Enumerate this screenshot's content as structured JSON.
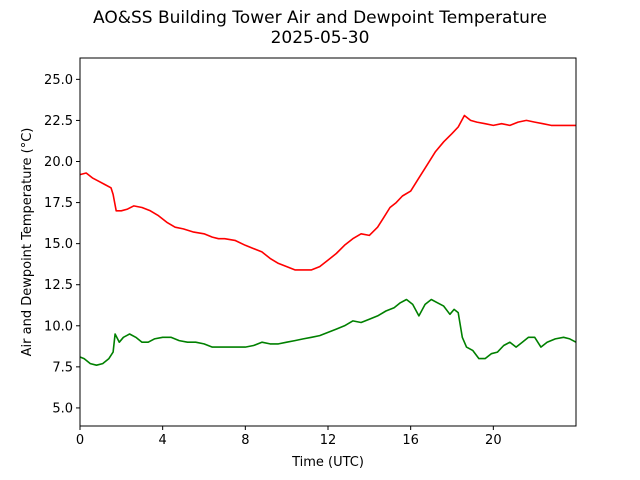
{
  "chart_data": {
    "type": "line",
    "title": "AO&SS Building Tower Air and Dewpoint Temperature",
    "subtitle": "2025-05-30",
    "xlabel": "Time (UTC)",
    "ylabel": "Air and Dewpoint Temperature (°C)",
    "xlim": [
      0,
      24
    ],
    "ylim": [
      3.9,
      26.3
    ],
    "xticks": [
      0,
      4,
      8,
      12,
      16,
      20
    ],
    "xtick_labels": [
      "0",
      "4",
      "8",
      "12",
      "16",
      "20"
    ],
    "yticks": [
      5.0,
      7.5,
      10.0,
      12.5,
      15.0,
      17.5,
      20.0,
      22.5,
      25.0
    ],
    "ytick_labels": [
      "5.0",
      "7.5",
      "10.0",
      "12.5",
      "15.0",
      "17.5",
      "20.0",
      "22.5",
      "25.0"
    ],
    "grid": false,
    "legend": "none",
    "series": [
      {
        "color": "#ff0000",
        "points": [
          [
            0.0,
            19.2
          ],
          [
            0.3,
            19.3
          ],
          [
            0.6,
            19.0
          ],
          [
            0.9,
            18.8
          ],
          [
            1.2,
            18.6
          ],
          [
            1.5,
            18.4
          ],
          [
            1.6,
            18.0
          ],
          [
            1.75,
            17.0
          ],
          [
            2.0,
            17.0
          ],
          [
            2.3,
            17.1
          ],
          [
            2.6,
            17.3
          ],
          [
            3.0,
            17.2
          ],
          [
            3.4,
            17.0
          ],
          [
            3.8,
            16.7
          ],
          [
            4.2,
            16.3
          ],
          [
            4.6,
            16.0
          ],
          [
            5.0,
            15.9
          ],
          [
            5.5,
            15.7
          ],
          [
            6.0,
            15.6
          ],
          [
            6.4,
            15.4
          ],
          [
            6.7,
            15.3
          ],
          [
            7.0,
            15.3
          ],
          [
            7.5,
            15.2
          ],
          [
            8.0,
            14.9
          ],
          [
            8.4,
            14.7
          ],
          [
            8.8,
            14.5
          ],
          [
            9.2,
            14.1
          ],
          [
            9.6,
            13.8
          ],
          [
            10.0,
            13.6
          ],
          [
            10.4,
            13.4
          ],
          [
            10.8,
            13.4
          ],
          [
            11.2,
            13.4
          ],
          [
            11.6,
            13.6
          ],
          [
            12.0,
            14.0
          ],
          [
            12.4,
            14.4
          ],
          [
            12.8,
            14.9
          ],
          [
            13.2,
            15.3
          ],
          [
            13.6,
            15.6
          ],
          [
            14.0,
            15.5
          ],
          [
            14.4,
            16.0
          ],
          [
            14.7,
            16.6
          ],
          [
            15.0,
            17.2
          ],
          [
            15.3,
            17.5
          ],
          [
            15.6,
            17.9
          ],
          [
            16.0,
            18.2
          ],
          [
            16.4,
            19.0
          ],
          [
            16.8,
            19.8
          ],
          [
            17.2,
            20.6
          ],
          [
            17.6,
            21.2
          ],
          [
            18.0,
            21.7
          ],
          [
            18.3,
            22.1
          ],
          [
            18.6,
            22.8
          ],
          [
            18.9,
            22.5
          ],
          [
            19.2,
            22.4
          ],
          [
            19.6,
            22.3
          ],
          [
            20.0,
            22.2
          ],
          [
            20.4,
            22.3
          ],
          [
            20.8,
            22.2
          ],
          [
            21.2,
            22.4
          ],
          [
            21.6,
            22.5
          ],
          [
            22.0,
            22.4
          ],
          [
            22.4,
            22.3
          ],
          [
            22.8,
            22.2
          ],
          [
            23.2,
            22.2
          ],
          [
            24.0,
            22.2
          ]
        ]
      },
      {
        "color": "#008000",
        "points": [
          [
            0.0,
            8.1
          ],
          [
            0.2,
            8.0
          ],
          [
            0.5,
            7.7
          ],
          [
            0.8,
            7.6
          ],
          [
            1.1,
            7.7
          ],
          [
            1.4,
            8.0
          ],
          [
            1.6,
            8.4
          ],
          [
            1.7,
            9.5
          ],
          [
            1.9,
            9.0
          ],
          [
            2.1,
            9.3
          ],
          [
            2.4,
            9.5
          ],
          [
            2.7,
            9.3
          ],
          [
            3.0,
            9.0
          ],
          [
            3.3,
            9.0
          ],
          [
            3.6,
            9.2
          ],
          [
            4.0,
            9.3
          ],
          [
            4.4,
            9.3
          ],
          [
            4.8,
            9.1
          ],
          [
            5.2,
            9.0
          ],
          [
            5.6,
            9.0
          ],
          [
            6.0,
            8.9
          ],
          [
            6.4,
            8.7
          ],
          [
            6.8,
            8.7
          ],
          [
            7.2,
            8.7
          ],
          [
            7.6,
            8.7
          ],
          [
            8.0,
            8.7
          ],
          [
            8.4,
            8.8
          ],
          [
            8.8,
            9.0
          ],
          [
            9.2,
            8.9
          ],
          [
            9.6,
            8.9
          ],
          [
            10.0,
            9.0
          ],
          [
            10.4,
            9.1
          ],
          [
            10.8,
            9.2
          ],
          [
            11.2,
            9.3
          ],
          [
            11.6,
            9.4
          ],
          [
            12.0,
            9.6
          ],
          [
            12.4,
            9.8
          ],
          [
            12.8,
            10.0
          ],
          [
            13.2,
            10.3
          ],
          [
            13.6,
            10.2
          ],
          [
            14.0,
            10.4
          ],
          [
            14.4,
            10.6
          ],
          [
            14.8,
            10.9
          ],
          [
            15.2,
            11.1
          ],
          [
            15.5,
            11.4
          ],
          [
            15.8,
            11.6
          ],
          [
            16.1,
            11.3
          ],
          [
            16.4,
            10.6
          ],
          [
            16.7,
            11.3
          ],
          [
            17.0,
            11.6
          ],
          [
            17.3,
            11.4
          ],
          [
            17.6,
            11.2
          ],
          [
            17.9,
            10.7
          ],
          [
            18.1,
            11.0
          ],
          [
            18.3,
            10.8
          ],
          [
            18.5,
            9.3
          ],
          [
            18.7,
            8.7
          ],
          [
            19.0,
            8.5
          ],
          [
            19.3,
            8.0
          ],
          [
            19.6,
            8.0
          ],
          [
            19.9,
            8.3
          ],
          [
            20.2,
            8.4
          ],
          [
            20.5,
            8.8
          ],
          [
            20.8,
            9.0
          ],
          [
            21.1,
            8.7
          ],
          [
            21.4,
            9.0
          ],
          [
            21.7,
            9.3
          ],
          [
            22.0,
            9.3
          ],
          [
            22.3,
            8.7
          ],
          [
            22.6,
            9.0
          ],
          [
            23.0,
            9.2
          ],
          [
            23.4,
            9.3
          ],
          [
            23.7,
            9.2
          ],
          [
            24.0,
            9.0
          ]
        ]
      }
    ]
  }
}
